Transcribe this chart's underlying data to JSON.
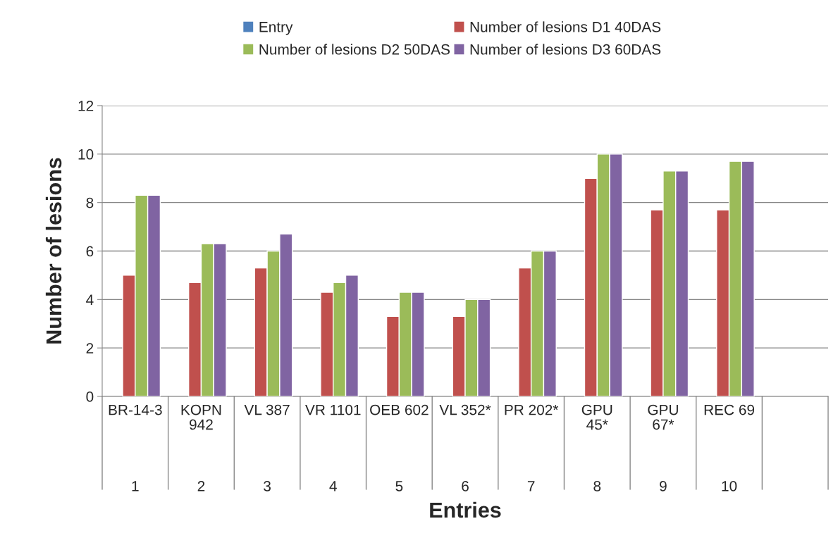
{
  "chart_data": {
    "type": "bar",
    "xlabel": "Entries",
    "ylabel": "Number of lesions",
    "categories": [
      "BR-14-3\n1",
      "KOPN\n942\n2",
      "VL 387\n3",
      "VR 1101\n4",
      "OEB 602\n5",
      "VL 352*\n6",
      "PR 202*\n7",
      "GPU\n45*\n8",
      "GPU\n67*\n9",
      "REC 69\n10",
      null
    ],
    "series": [
      {
        "name": "Entry",
        "color": "#4f81bd",
        "values": [
          null,
          null,
          null,
          null,
          null,
          null,
          null,
          null,
          null,
          null,
          null
        ]
      },
      {
        "name": "Number of lesions D1 40DAS",
        "color": "#c0504d",
        "values": [
          5,
          4.7,
          5.3,
          4.3,
          3.3,
          3.3,
          5.3,
          9,
          7.7,
          7.7,
          null
        ]
      },
      {
        "name": "Number of lesions D2 50DAS",
        "color": "#9bbb59",
        "values": [
          8.3,
          6.3,
          6,
          4.7,
          4.3,
          4,
          6,
          10,
          9.3,
          9.7,
          null
        ]
      },
      {
        "name": "Number of lesions D3 60DAS",
        "color": "#8064a2",
        "values": [
          8.3,
          6.3,
          6.7,
          5,
          4.3,
          4,
          6,
          10,
          9.3,
          9.7,
          null
        ]
      }
    ],
    "ylim": [
      0,
      12
    ],
    "yticks": [
      0,
      2,
      4,
      6,
      8,
      10,
      12
    ],
    "grid": "y",
    "legend": "top"
  }
}
